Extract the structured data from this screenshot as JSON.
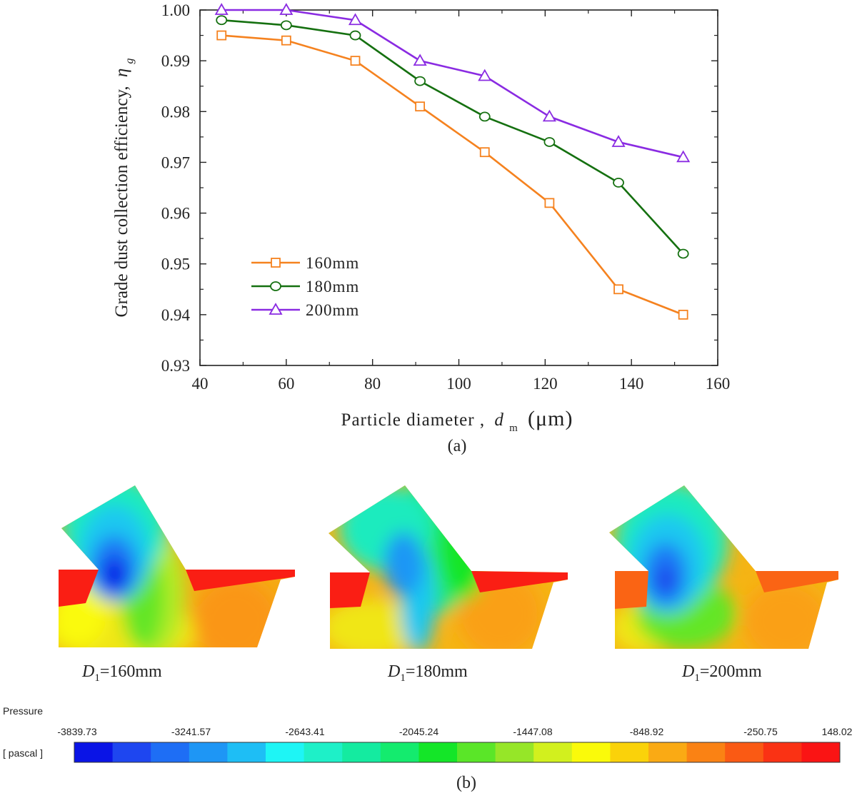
{
  "chart_data": [
    {
      "type": "line",
      "panel_label": "(a)",
      "xlabel_main": "Particle diameter ,",
      "xlabel_var": "d",
      "xlabel_sub": "m",
      "xlabel_unit": "(μm)",
      "ylabel_main": "Grade dust collection efficiency,",
      "ylabel_var": "η",
      "ylabel_sub": "g",
      "xlim": [
        40,
        160
      ],
      "ylim": [
        0.93,
        1.0
      ],
      "xticks": [
        "40",
        "60",
        "80",
        "100",
        "120",
        "140",
        "160"
      ],
      "yticks": [
        "0.93",
        "0.94",
        "0.95",
        "0.96",
        "0.97",
        "0.98",
        "0.99",
        "1.00"
      ],
      "legend_position": "lower-left",
      "x": [
        45,
        60,
        76,
        91,
        106,
        121,
        137,
        152
      ],
      "series": [
        {
          "name": "160mm",
          "marker": "square",
          "color": "#F5821F",
          "values": [
            0.995,
            0.994,
            0.99,
            0.981,
            0.972,
            0.962,
            0.945,
            0.94
          ]
        },
        {
          "name": "180mm",
          "marker": "circle",
          "color": "#157010",
          "values": [
            0.998,
            0.997,
            0.995,
            0.986,
            0.979,
            0.974,
            0.966,
            0.952
          ]
        },
        {
          "name": "200mm",
          "marker": "triangle",
          "color": "#8A2BE2",
          "values": [
            1.0,
            1.0,
            0.998,
            0.99,
            0.987,
            0.979,
            0.974,
            0.971
          ]
        }
      ]
    },
    {
      "type": "heatmap",
      "panel_label": "(b)",
      "title": "Pressure",
      "unit": "[ pascal ]",
      "scale_labels": [
        "-3839.73",
        "-3241.57",
        "-2643.41",
        "-2045.24",
        "-1447.08",
        "-848.92",
        "-250.75",
        "148.02"
      ],
      "colors": [
        "#0A14E6",
        "#1E46F0",
        "#1E6EF5",
        "#1E96F5",
        "#1EBEF5",
        "#1EF5F5",
        "#1EF0C8",
        "#14EBA0",
        "#14EB6E",
        "#14E628",
        "#5AE628",
        "#96E628",
        "#D2F01E",
        "#FAFA0A",
        "#FAD20A",
        "#FAAA14",
        "#FA8214",
        "#FA5A14",
        "#FA3214",
        "#FA1414"
      ],
      "cases": [
        {
          "var": "D",
          "sub": "1",
          "value": "=160mm"
        },
        {
          "var": "D",
          "sub": "1",
          "value": "=180mm"
        },
        {
          "var": "D",
          "sub": "1",
          "value": "=200mm"
        }
      ]
    }
  ]
}
